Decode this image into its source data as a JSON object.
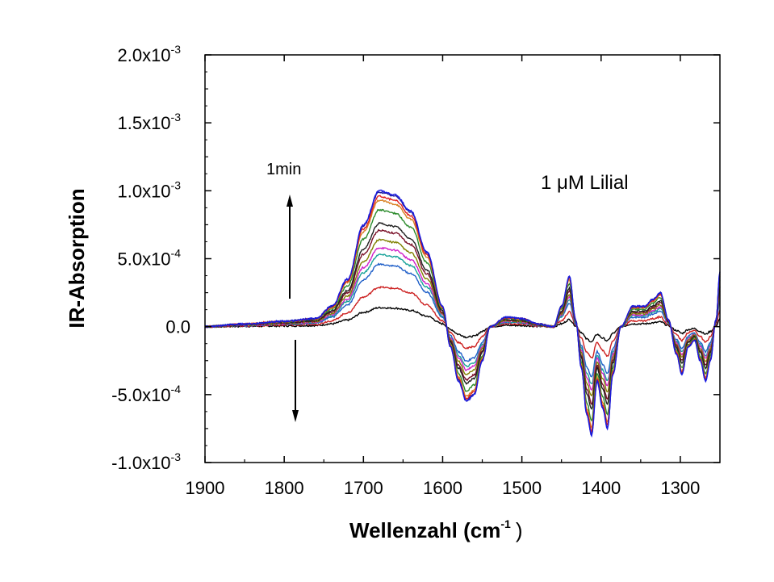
{
  "chart_data": {
    "type": "line",
    "title": "",
    "xlabel": "Wellenzahl (cm",
    "xlabel_sup": "-1",
    "xlabel_close": ")",
    "ylabel": "IR-Absorption",
    "xlim": [
      1900,
      1250
    ],
    "x_reversed": true,
    "ylim": [
      -0.001,
      0.002
    ],
    "x_ticks": [
      1900,
      1800,
      1700,
      1600,
      1500,
      1400,
      1300
    ],
    "x_tick_labels": [
      "1900",
      "1800",
      "1700",
      "1600",
      "1500",
      "1400",
      "1300"
    ],
    "y_ticks": [
      {
        "value": 0.002,
        "mantissa": "2.0x10",
        "exp": "-3"
      },
      {
        "value": 0.0015,
        "mantissa": "1.5x10",
        "exp": "-3"
      },
      {
        "value": 0.001,
        "mantissa": "1.0x10",
        "exp": "-3"
      },
      {
        "value": 0.0005,
        "mantissa": "5.0x10",
        "exp": "-4"
      },
      {
        "value": 0.0,
        "mantissa": "0.0",
        "exp": ""
      },
      {
        "value": -0.0005,
        "mantissa": "-5.0x10",
        "exp": "-4"
      },
      {
        "value": -0.001,
        "mantissa": "-1.0x10",
        "exp": "-3"
      }
    ],
    "grid": false,
    "annotations": {
      "label": "1 μM Lilial",
      "time_label": "1min",
      "arrow_up_x": 1790,
      "arrow_down_x": 1785
    },
    "profile_x": [
      1900,
      1850,
      1800,
      1760,
      1740,
      1720,
      1700,
      1680,
      1660,
      1640,
      1620,
      1600,
      1590,
      1580,
      1570,
      1560,
      1550,
      1540,
      1520,
      1500,
      1480,
      1460,
      1450,
      1440,
      1432,
      1425,
      1418,
      1412,
      1405,
      1398,
      1392,
      1385,
      1375,
      1360,
      1345,
      1335,
      1325,
      1315,
      1305,
      1298,
      1290,
      1282,
      1275,
      1268,
      1262,
      1255,
      1250
    ],
    "profile_y": [
      0.0,
      2e-05,
      4e-05,
      6e-05,
      0.00015,
      0.00035,
      0.00075,
      0.001,
      0.00097,
      0.00085,
      0.00055,
      0.00015,
      -0.00015,
      -0.0004,
      -0.00055,
      -0.0005,
      -0.00025,
      0.0,
      7e-05,
      6e-05,
      2e-05,
      0.0,
      0.00015,
      0.00037,
      5e-05,
      -0.0003,
      -0.00065,
      -0.0008,
      -0.0004,
      -0.0006,
      -0.00075,
      -0.00035,
      0.0,
      0.00015,
      0.00015,
      0.0002,
      0.00025,
      5e-05,
      -0.0002,
      -0.00035,
      -0.00015,
      -0.0001,
      -0.00025,
      -0.0004,
      -0.00025,
      5e-05,
      0.0004
    ],
    "series": [
      {
        "scale": 0.14,
        "color": "#000000"
      },
      {
        "scale": 0.29,
        "color": "#cc2020"
      },
      {
        "scale": 0.46,
        "color": "#1f5fc8"
      },
      {
        "scale": 0.53,
        "color": "#1aa39a"
      },
      {
        "scale": 0.58,
        "color": "#d020c8"
      },
      {
        "scale": 0.64,
        "color": "#808000"
      },
      {
        "scale": 0.71,
        "color": "#7a1028"
      },
      {
        "scale": 0.76,
        "color": "#202020"
      },
      {
        "scale": 0.86,
        "color": "#2a8a2a"
      },
      {
        "scale": 0.93,
        "color": "#d88020"
      },
      {
        "scale": 0.96,
        "color": "#e02020"
      },
      {
        "scale": 0.99,
        "color": "#2020a0"
      },
      {
        "scale": 1.0,
        "color": "#1a1ae0"
      }
    ]
  }
}
